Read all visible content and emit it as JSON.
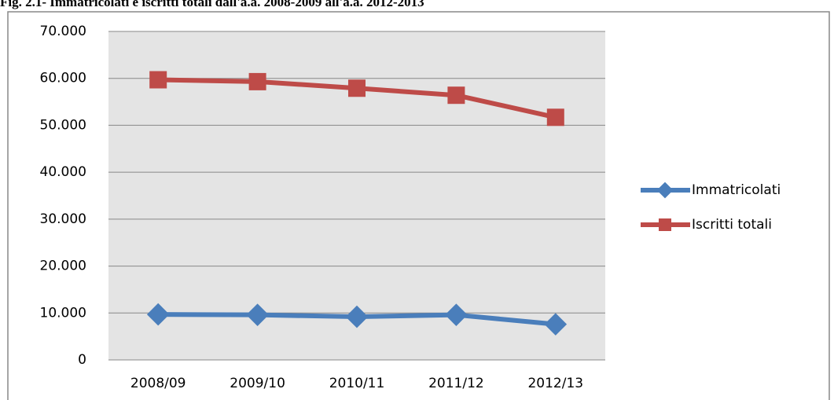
{
  "chart_data": {
    "type": "line",
    "title": "Fig. 2.1- Immatricolati e iscritti totali dall'a.a. 2008-2009 all'a.a. 2012-2013",
    "categories": [
      "2008/09",
      "2009/10",
      "2010/11",
      "2011/12",
      "2012/13"
    ],
    "series": [
      {
        "name": "Immatricolati",
        "color": "#4a7ebb",
        "marker": "diamond",
        "values": [
          9700,
          9600,
          9200,
          9600,
          7600
        ]
      },
      {
        "name": "Iscritti totali",
        "color": "#be4b48",
        "marker": "square",
        "values": [
          59700,
          59300,
          57900,
          56400,
          51700
        ]
      }
    ],
    "ylim": [
      0,
      70000
    ],
    "yticks": [
      0,
      {
        "value": 10000,
        "label": "10.000"
      },
      {
        "value": 20000,
        "label": "20.000"
      },
      {
        "value": 30000,
        "label": "30.000"
      },
      {
        "value": 40000,
        "label": "40.000"
      },
      {
        "value": 50000,
        "label": "50.000"
      },
      {
        "value": 60000,
        "label": "60.000"
      },
      {
        "value": 70000,
        "label": "70.000"
      }
    ],
    "grid": true,
    "legend": "right"
  }
}
